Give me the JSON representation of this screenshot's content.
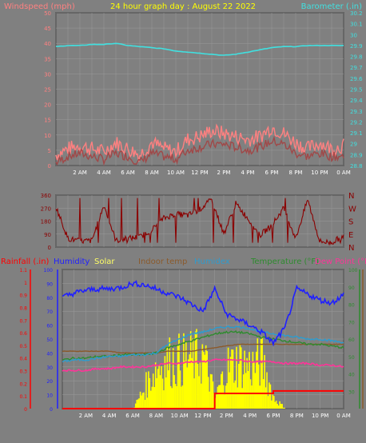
{
  "title": "24 hour graph day : August 22 2022",
  "colors": {
    "background": "#808080",
    "grid": "#9a9a9a",
    "plot_border": "#000000",
    "windspeed": "#ff8080",
    "gust": "#a04848",
    "barometer": "#40e0e0",
    "direction": "#8b0000",
    "rain": "#ff0000",
    "humidity": "#2020ff",
    "solar": "#ffff00",
    "indoor": "#8b5a2b",
    "humidex": "#2d9ccf",
    "temperature": "#2e8b2e",
    "dewpoint": "#ff3399",
    "tick_text": "#ffffff"
  },
  "x_tick_labels": [
    "2 AM",
    "4 AM",
    "6 AM",
    "8 AM",
    "10 AM",
    "12 PM",
    "2 PM",
    "4 PM",
    "6 PM",
    "8 PM",
    "10 PM",
    "0 AM"
  ],
  "chart_data": [
    {
      "type": "line",
      "panel": "wind-barometer",
      "x": [
        0,
        1,
        2,
        3,
        4,
        5,
        6,
        7,
        8,
        9,
        10,
        11,
        12,
        13,
        14,
        15,
        16,
        17,
        18,
        19,
        20,
        21,
        22,
        23,
        24
      ],
      "y_left_label": "Windspeed (mph)",
      "y_left_range": [
        0,
        50
      ],
      "y_left_ticks": [
        "0",
        "5",
        "10",
        "15",
        "20",
        "25",
        "30",
        "35",
        "40",
        "45",
        "50"
      ],
      "y_right_label": "Barometer (.in)",
      "y_right_range": [
        28.8,
        30.2
      ],
      "y_right_ticks": [
        "28.8",
        "28.9",
        "29",
        "29.1",
        "29.2",
        "29.3",
        "29.4",
        "29.5",
        "29.6",
        "29.7",
        "29.8",
        "29.9",
        "30",
        "30.1",
        "30.2"
      ],
      "series": [
        {
          "key": "windspeed",
          "axis": "left",
          "values": [
            3,
            5,
            6,
            5,
            4,
            7,
            5,
            3,
            7,
            5,
            4,
            8,
            9,
            11,
            10,
            9,
            8,
            9,
            12,
            10,
            7,
            5,
            7,
            5,
            6
          ]
        },
        {
          "key": "gust",
          "axis": "left",
          "values": [
            1,
            3,
            4,
            3,
            2,
            4,
            3,
            1,
            4,
            3,
            2,
            5,
            6,
            7,
            7,
            6,
            5,
            6,
            8,
            7,
            4,
            3,
            4,
            3,
            3
          ]
        },
        {
          "key": "barometer",
          "axis": "right",
          "values": [
            29.89,
            29.9,
            29.9,
            29.91,
            29.91,
            29.92,
            29.9,
            29.89,
            29.88,
            29.87,
            29.85,
            29.84,
            29.83,
            29.82,
            29.81,
            29.82,
            29.84,
            29.86,
            29.88,
            29.89,
            29.89,
            29.9,
            29.9,
            29.9,
            29.9
          ]
        }
      ]
    },
    {
      "type": "line",
      "panel": "wind-direction",
      "y_range": [
        0,
        360
      ],
      "y_ticks": [
        "0",
        "90",
        "180",
        "270",
        "360"
      ],
      "y_right_labels": [
        "N",
        "E",
        "S",
        "W",
        "N"
      ],
      "x": [
        0,
        1,
        2,
        3,
        4,
        5,
        6,
        7,
        8,
        9,
        10,
        11,
        12,
        13,
        14,
        15,
        16,
        17,
        18,
        19,
        20,
        21,
        22,
        23,
        24
      ],
      "values": [
        280,
        60,
        40,
        45,
        290,
        45,
        60,
        70,
        120,
        200,
        230,
        220,
        260,
        330,
        90,
        300,
        200,
        80,
        150,
        270,
        60,
        330,
        40,
        30,
        80
      ]
    },
    {
      "type": "line",
      "panel": "rain-humidity-temp",
      "legend": [
        "Rainfall (.in)",
        "Humidity",
        "Solar",
        "Indoor temp",
        "Humidex",
        "Temperature (°F)",
        "Dew Point (°F)"
      ],
      "y_left_range": [
        0,
        1.1
      ],
      "y_left_ticks": [
        "0",
        "0.1",
        "0.2",
        "0.3",
        "0.4",
        "0.5",
        "0.6",
        "0.7",
        "0.8",
        "0.9",
        "1",
        "1.1"
      ],
      "y_hum_range": [
        0,
        100
      ],
      "y_hum_ticks": [
        "0",
        "10",
        "20",
        "30",
        "40",
        "50",
        "60",
        "70",
        "80",
        "90",
        "100"
      ],
      "y_right_range": [
        20,
        100
      ],
      "y_right_ticks": [
        "30",
        "40",
        "50",
        "60",
        "70",
        "80",
        "90",
        "100"
      ],
      "x": [
        0,
        1,
        2,
        3,
        4,
        5,
        6,
        7,
        8,
        9,
        10,
        11,
        12,
        13,
        14,
        15,
        16,
        17,
        18,
        19,
        20,
        21,
        22,
        23,
        24
      ],
      "series": [
        {
          "key": "rain",
          "axis": "left",
          "values": [
            0,
            0,
            0,
            0,
            0,
            0,
            0,
            0,
            0,
            0,
            0,
            0,
            0,
            0.12,
            0.12,
            0.12,
            0.12,
            0.12,
            0.14,
            0.14,
            0.14,
            0.14,
            0.14,
            0.14,
            0.14
          ]
        },
        {
          "key": "humidity",
          "axis": "hum",
          "values": [
            80,
            83,
            85,
            86,
            86,
            87,
            90,
            89,
            86,
            83,
            80,
            75,
            70,
            86,
            68,
            64,
            60,
            55,
            47,
            58,
            86,
            82,
            78,
            76,
            82
          ]
        },
        {
          "key": "solar",
          "axis": "hum",
          "values": [
            0,
            0,
            0,
            0,
            0,
            0,
            0,
            20,
            40,
            45,
            46,
            48,
            50,
            10,
            40,
            45,
            40,
            45,
            10,
            0,
            0,
            0,
            0,
            0,
            0
          ]
        },
        {
          "key": "indoor",
          "axis": "right",
          "values": [
            53,
            53,
            53,
            53,
            53,
            52,
            52,
            52,
            52,
            53,
            53,
            53,
            54,
            55,
            56,
            57,
            57,
            57,
            57,
            57,
            57,
            57,
            57,
            57,
            57
          ]
        },
        {
          "key": "humidex",
          "axis": "right",
          "values": [
            47,
            48,
            48,
            49,
            50,
            50,
            51,
            51,
            52,
            57,
            60,
            63,
            64,
            66,
            67,
            67,
            66,
            64,
            63,
            62,
            61,
            60,
            60,
            59,
            58
          ]
        },
        {
          "key": "temperature",
          "axis": "right",
          "values": [
            48,
            49,
            49,
            50,
            50,
            51,
            51,
            51,
            52,
            55,
            57,
            59,
            61,
            63,
            64,
            64,
            63,
            61,
            60,
            59,
            58,
            57,
            57,
            56,
            55
          ]
        },
        {
          "key": "dewpoint",
          "axis": "right",
          "values": [
            42,
            42,
            42,
            43,
            43,
            44,
            44,
            44,
            45,
            46,
            46,
            47,
            47,
            48,
            48,
            48,
            47,
            47,
            47,
            46,
            46,
            46,
            45,
            45,
            44
          ]
        }
      ]
    }
  ]
}
